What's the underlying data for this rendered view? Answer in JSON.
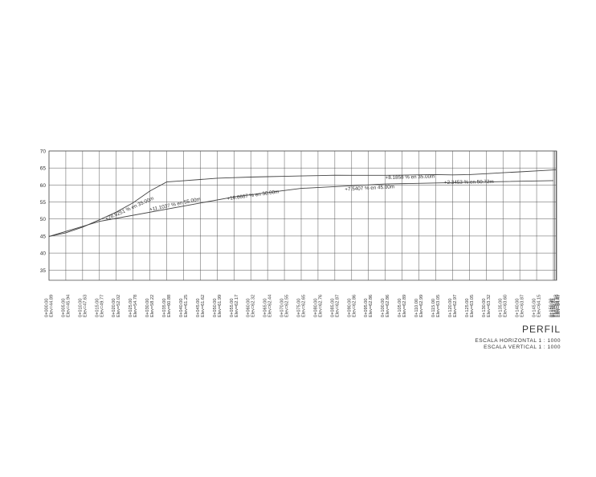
{
  "chart_data": {
    "type": "line",
    "y_ticks": [
      35,
      40,
      45,
      50,
      55,
      60,
      65,
      70
    ],
    "ylim": [
      32,
      70
    ],
    "x_range": [
      0,
      150
    ],
    "grid": true,
    "stations": [
      {
        "station": "0+000.00",
        "elev": "Elev=44.89",
        "x": 0
      },
      {
        "station": "0+005.00",
        "elev": "Elev=45.94",
        "x": 5
      },
      {
        "station": "0+010.00",
        "elev": "Elev=47.63",
        "x": 10
      },
      {
        "station": "0+015.00",
        "elev": "Elev=49.77",
        "x": 15
      },
      {
        "station": "0+020.00",
        "elev": "Elev=52.02",
        "x": 20
      },
      {
        "station": "0+025.00",
        "elev": "Elev=54.78",
        "x": 25
      },
      {
        "station": "0+030.00",
        "elev": "Elev=58.22",
        "x": 30
      },
      {
        "station": "0+035.00",
        "elev": "Elev=60.88",
        "x": 35
      },
      {
        "station": "0+040.00",
        "elev": "Elev=61.25",
        "x": 40
      },
      {
        "station": "0+045.00",
        "elev": "Elev=61.62",
        "x": 45
      },
      {
        "station": "0+050.00",
        "elev": "Elev=61.99",
        "x": 50
      },
      {
        "station": "0+055.00",
        "elev": "Elev=62.17",
        "x": 55
      },
      {
        "station": "0+060.00",
        "elev": "Elev=62.32",
        "x": 60
      },
      {
        "station": "0+065.00",
        "elev": "Elev=62.44",
        "x": 65
      },
      {
        "station": "0+070.00",
        "elev": "Elev=62.55",
        "x": 70
      },
      {
        "station": "0+075.00",
        "elev": "Elev=62.65",
        "x": 75
      },
      {
        "station": "0+080.00",
        "elev": "Elev=62.76",
        "x": 80
      },
      {
        "station": "0+085.00",
        "elev": "Elev=62.87",
        "x": 85
      },
      {
        "station": "0+090.00",
        "elev": "Elev=62.86",
        "x": 90
      },
      {
        "station": "0+095.00",
        "elev": "Elev=62.86",
        "x": 95
      },
      {
        "station": "0+100.00",
        "elev": "Elev=62.86",
        "x": 100
      },
      {
        "station": "0+105.00",
        "elev": "Elev=62.89",
        "x": 105
      },
      {
        "station": "0+110.00",
        "elev": "Elev=62.99",
        "x": 110
      },
      {
        "station": "0+115.00",
        "elev": "Elev=63.05",
        "x": 115
      },
      {
        "station": "0+120.00",
        "elev": "Elev=62.97",
        "x": 120
      },
      {
        "station": "0+125.00",
        "elev": "Elev=63.05",
        "x": 125
      },
      {
        "station": "0+130.00",
        "elev": "Elev=63.32",
        "x": 130
      },
      {
        "station": "0+135.00",
        "elev": "Elev=63.60",
        "x": 135
      },
      {
        "station": "0+140.00",
        "elev": "Elev=63.87",
        "x": 140
      },
      {
        "station": "0+145.00",
        "elev": "Elev=64.15",
        "x": 145
      }
    ],
    "end_stations": [
      {
        "station": "0+150.00",
        "elev": "Elev=64.43",
        "x": 150
      },
      {
        "station": "0+150.45",
        "elev": "Elev=64.45",
        "x": 150.45
      },
      {
        "station": "0+150.72",
        "elev": "Elev=64.47",
        "x": 150.72
      }
    ],
    "series": [
      {
        "x": [
          0,
          5,
          10,
          15,
          20,
          25,
          30,
          35,
          40,
          45,
          50,
          55,
          60,
          65,
          70,
          75,
          80,
          85,
          90,
          95,
          100,
          105,
          110,
          115,
          120,
          125,
          130,
          135,
          140,
          145,
          150.72
        ],
        "y": [
          44.89,
          45.94,
          47.63,
          49.77,
          52.02,
          54.78,
          58.22,
          60.88,
          61.25,
          61.62,
          61.99,
          62.17,
          62.32,
          62.44,
          62.55,
          62.65,
          62.76,
          62.87,
          62.86,
          62.86,
          62.86,
          62.89,
          62.99,
          63.05,
          62.97,
          63.05,
          63.32,
          63.6,
          63.87,
          64.15,
          64.47
        ]
      },
      {
        "x": [
          0,
          15,
          55,
          75,
          100,
          150
        ],
        "y": [
          44.89,
          49.3,
          56.5,
          59.0,
          60.3,
          61.3
        ]
      }
    ],
    "grade_labels": [
      {
        "text": "+28.9251 % en 35.00m",
        "x": 17,
        "y": 49.5,
        "angle": -24
      },
      {
        "text": "+11.1037 % en 55.00m",
        "x": 30,
        "y": 52.3,
        "angle": -12
      },
      {
        "text": "+16.6667 % en 30.00m",
        "x": 53,
        "y": 55.5,
        "angle": -8
      },
      {
        "text": "+7.5407 % en 45.00m",
        "x": 88,
        "y": 58.3,
        "angle": -3
      },
      {
        "text": "+8.1858 % en 35.00m",
        "x": 100,
        "y": 61.7,
        "angle": -1.5
      },
      {
        "text": "+2.3453 % en 50.72m",
        "x": 155,
        "y": 60.3,
        "angle": -1
      }
    ]
  },
  "title_block": {
    "title": "PERFIL",
    "scale_h": "ESCALA HORIZONTAL 1 : 1000",
    "scale_v": "ESCALA VERTICAL 1 : 1000"
  },
  "colors": {
    "line": "#444444",
    "grid": "#555555",
    "text": "#333333"
  }
}
